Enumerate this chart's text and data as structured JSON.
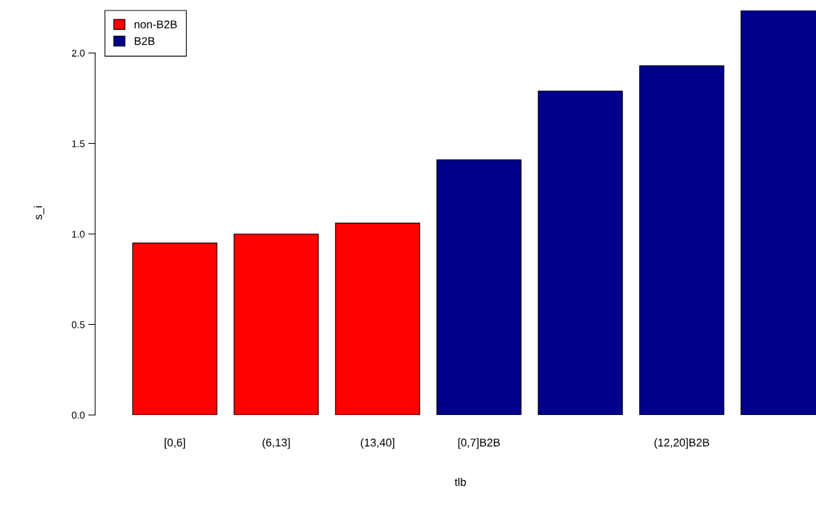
{
  "chart_data": {
    "type": "bar",
    "xlabel": "tlb",
    "ylabel": "s_i",
    "categories": [
      "[0,6]",
      "(6,13]",
      "(13,40]",
      "[0,7]B2B",
      null,
      "(12,20]B2B",
      null
    ],
    "series": [
      {
        "name": "non-B2B",
        "color": "#ff0000",
        "values": [
          0.95,
          1.0,
          1.06,
          null,
          null,
          null,
          null
        ]
      },
      {
        "name": "B2B",
        "color": "#00008b",
        "values": [
          null,
          null,
          null,
          1.41,
          1.79,
          1.93,
          2.235
        ]
      }
    ],
    "ylim": [
      0,
      2.235
    ],
    "yticks": [
      {
        "value": 0,
        "label": "0.0"
      },
      {
        "value": 0.5,
        "label": "0.5"
      },
      {
        "value": 1,
        "label": "1.0"
      },
      {
        "value": 1.5,
        "label": "1.5"
      },
      {
        "value": 2,
        "label": "2.0"
      }
    ],
    "legend": "top left",
    "grid": false
  }
}
